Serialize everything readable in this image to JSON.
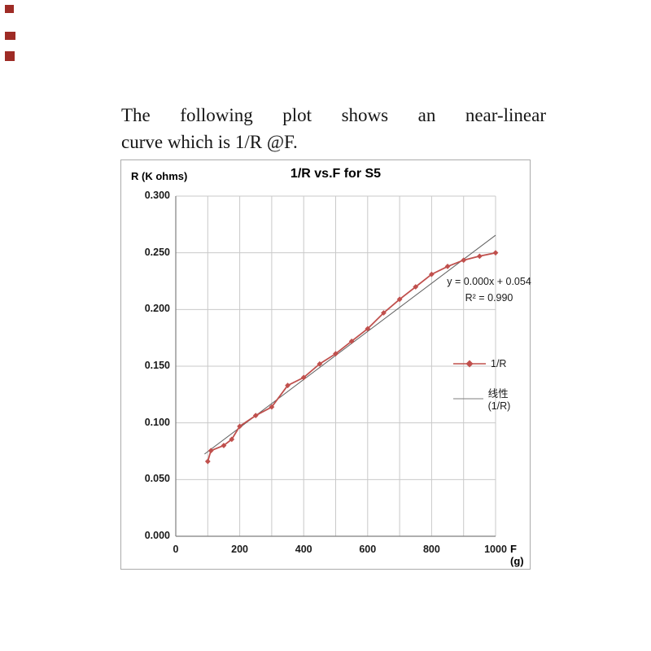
{
  "document": {
    "paragraph_line1": "The following plot shows an near-linear",
    "paragraph_line2": "curve which is 1/R @F."
  },
  "chart": {
    "title": "1/R vs.F for S5",
    "y_axis_label": "R (K ohms)",
    "x_axis_label": "F (g)",
    "annotation_line1": "y = 0.000x + 0.054",
    "annotation_line2": "R² = 0.990",
    "legend": [
      {
        "label": "1/R",
        "color": "#C0504D",
        "marker": "diamond-line"
      },
      {
        "label": "线性 (1/R)",
        "color": "#7f7f7f",
        "marker": "line"
      }
    ]
  },
  "chart_data": {
    "type": "line",
    "title": "1/R vs.F for S5",
    "xlabel": "F (g)",
    "ylabel": "R (K ohms)",
    "xlim": [
      0,
      1000
    ],
    "ylim": [
      0,
      0.3
    ],
    "x_ticks": [
      0,
      200,
      400,
      600,
      800,
      1000
    ],
    "y_ticks": [
      0,
      0.05,
      0.1,
      0.15,
      0.2,
      0.25,
      0.3
    ],
    "grid": true,
    "x_grid_interval": 100,
    "legend_position": "right-inside",
    "series": [
      {
        "name": "1/R",
        "color": "#C0504D",
        "marker": "diamond",
        "points": [
          [
            100,
            0.066
          ],
          [
            110,
            0.0755
          ],
          [
            150,
            0.08
          ],
          [
            175,
            0.0855
          ],
          [
            200,
            0.097
          ],
          [
            250,
            0.1065
          ],
          [
            300,
            0.114
          ],
          [
            350,
            0.133
          ],
          [
            400,
            0.14
          ],
          [
            450,
            0.152
          ],
          [
            500,
            0.161
          ],
          [
            550,
            0.172
          ],
          [
            600,
            0.183
          ],
          [
            650,
            0.197
          ],
          [
            700,
            0.209
          ],
          [
            750,
            0.22
          ],
          [
            800,
            0.231
          ],
          [
            850,
            0.238
          ],
          [
            900,
            0.2435
          ],
          [
            950,
            0.247
          ],
          [
            1000,
            0.25
          ]
        ]
      }
    ],
    "trendline": {
      "name": "线性 (1/R)",
      "color": "#5f5f5f",
      "equation": "y = 0.000x + 0.054",
      "r_squared": "R² = 0.990",
      "x1": 90,
      "y1": 0.0725,
      "x2": 1000,
      "y2": 0.2655
    }
  }
}
